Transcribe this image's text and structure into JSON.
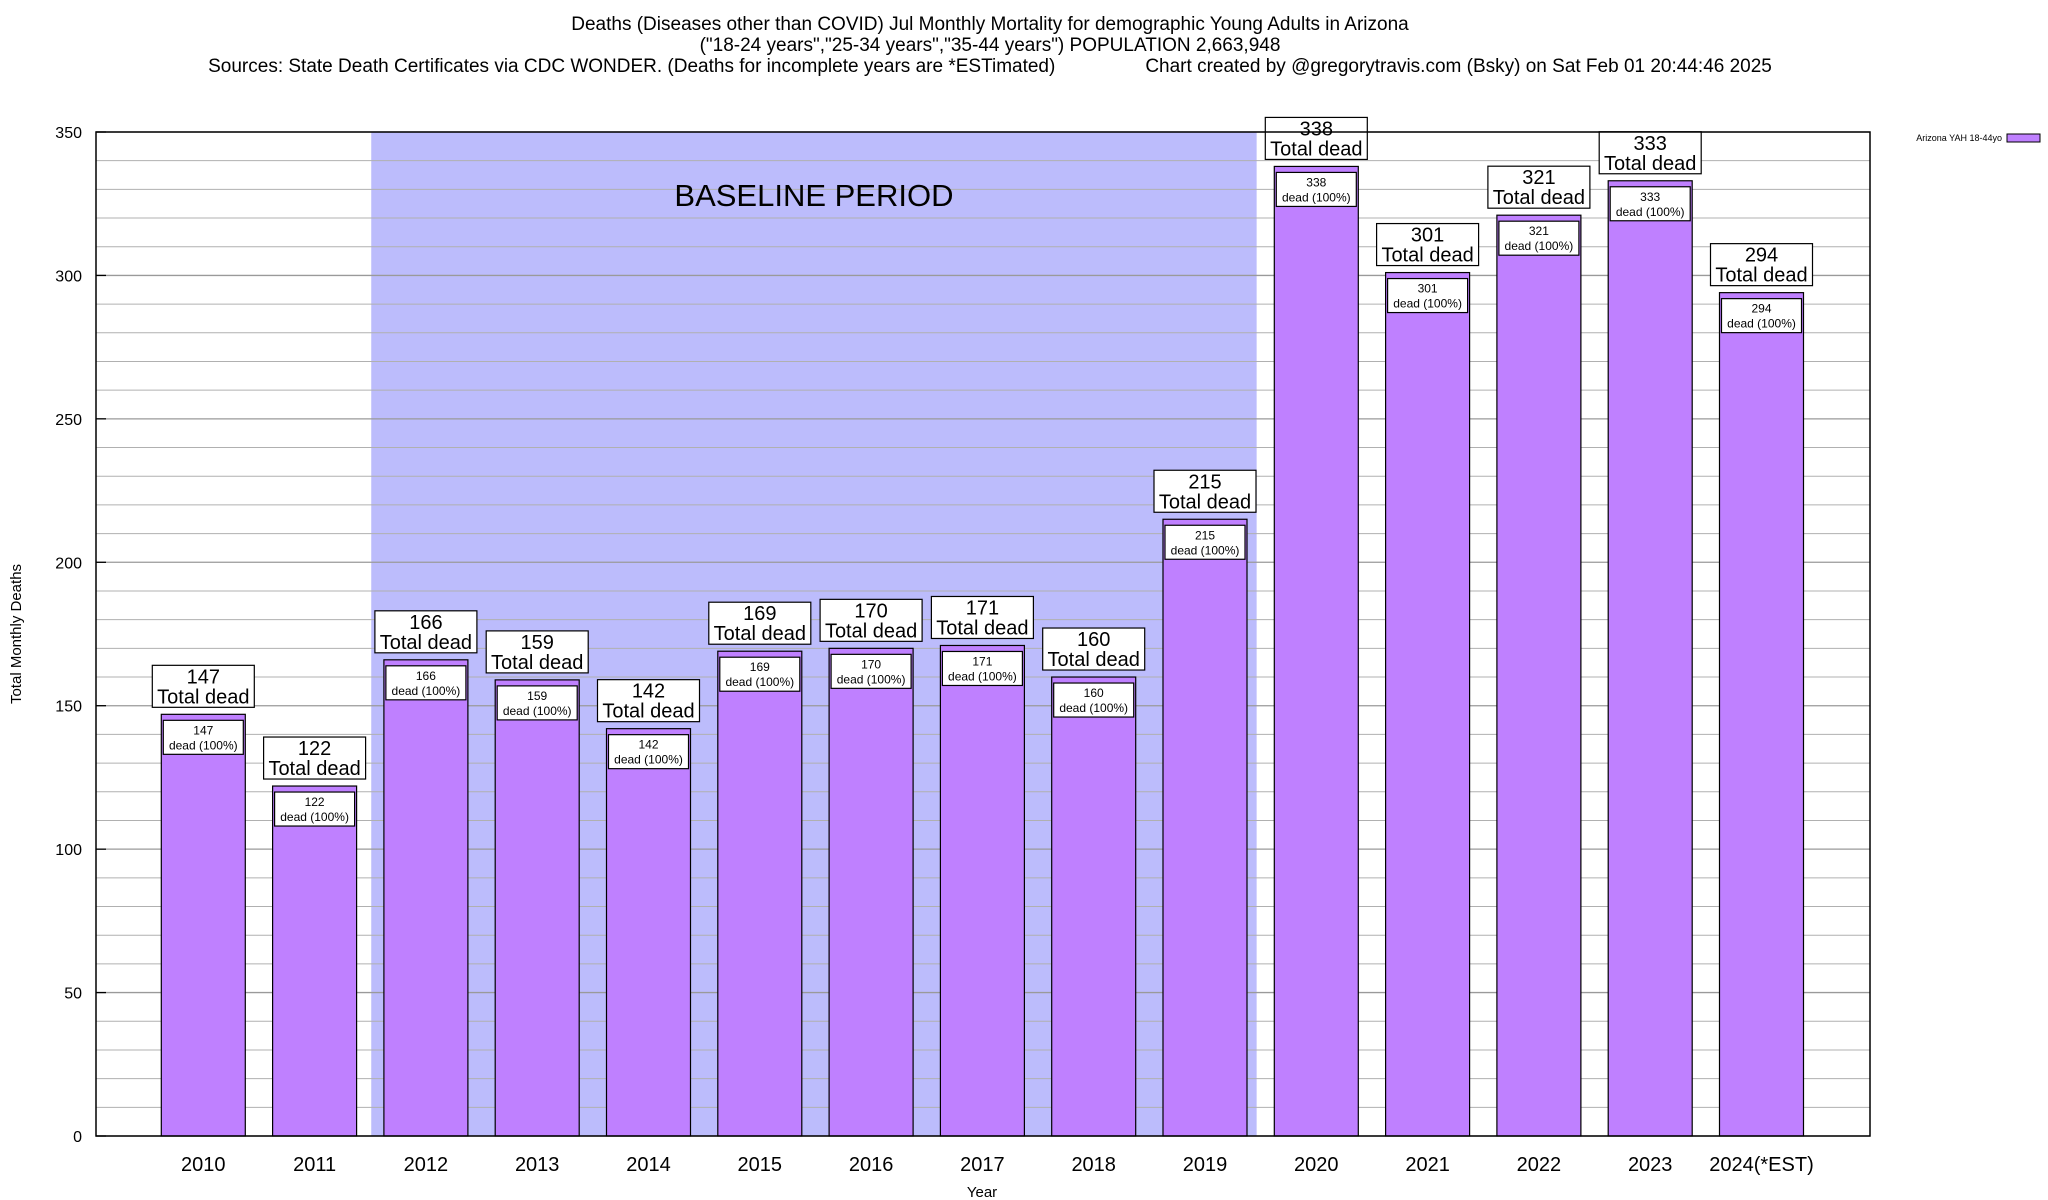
{
  "chart_data": {
    "type": "bar",
    "title": "Deaths (Diseases other than COVID) Jul Monthly Mortality for demographic Young Adults in Arizona",
    "subtitle": "(\"18-24 years\",\"25-34 years\",\"35-44 years\") POPULATION 2,663,948",
    "sources": "Sources: State Death Certificates via CDC WONDER. (Deaths for incomplete years are *ESTimated)",
    "credit": "Chart created by @gregorytravis.com (Bsky) on Sat Feb 01 20:44:46 2025",
    "xlabel": "Year",
    "ylabel": "Total Monthly Deaths",
    "ylim": [
      0,
      350
    ],
    "yticks": [
      0,
      50,
      100,
      150,
      200,
      250,
      300,
      350
    ],
    "grid": true,
    "legend_position": "top-right",
    "categories": [
      "2010",
      "2011",
      "2012",
      "2013",
      "2014",
      "2015",
      "2016",
      "2017",
      "2018",
      "2019",
      "2020",
      "2021",
      "2022",
      "2023",
      "2024(*EST)"
    ],
    "series": [
      {
        "name": "Arizona YAH 18-44yo",
        "color": "#bf80ff",
        "values": [
          147,
          122,
          166,
          159,
          142,
          169,
          170,
          171,
          160,
          215,
          338,
          301,
          321,
          333,
          294
        ]
      }
    ],
    "total_label_suffix": "Total dead",
    "inner_label_suffix": "dead (100%)",
    "baseline": {
      "label": "BASELINE PERIOD",
      "from": "2012",
      "to": "2019",
      "color": "#bcbcfc"
    }
  }
}
